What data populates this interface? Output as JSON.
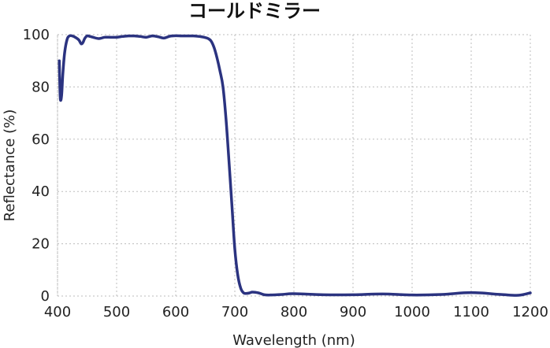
{
  "chart_data": {
    "type": "line",
    "title": "コールドミラー",
    "xlabel": "Wavelength (nm)",
    "ylabel": "Reflectance (%)",
    "xlim": [
      400,
      1200
    ],
    "ylim": [
      0,
      100
    ],
    "x_ticks": [
      "400",
      "500",
      "600",
      "700",
      "800",
      "900",
      "1000",
      "1100",
      "1200"
    ],
    "y_ticks": [
      "0",
      "20",
      "40",
      "60",
      "80",
      "100"
    ],
    "grid": true,
    "line_color": "#2b3380",
    "series": [
      {
        "x": [
          403,
          404,
          405,
          407,
          409,
          412,
          416,
          420,
          425,
          430,
          436,
          440,
          443,
          446,
          450,
          455,
          460,
          470,
          480,
          490,
          500,
          510,
          520,
          530,
          540,
          550,
          560,
          570,
          580,
          590,
          600,
          610,
          620,
          630,
          640,
          648,
          655,
          660,
          665,
          670,
          675,
          680,
          685,
          690,
          695,
          700,
          705,
          710,
          715,
          720,
          725,
          730,
          740,
          750,
          760,
          780,
          800,
          850,
          900,
          950,
          1000,
          1050,
          1100,
          1150,
          1180,
          1200
        ],
        "y": [
          90,
          80,
          75,
          77,
          85,
          93,
          98,
          99.5,
          99.5,
          99,
          98,
          96.5,
          97,
          98.5,
          99.5,
          99.3,
          99,
          98.5,
          99,
          99,
          99,
          99.3,
          99.5,
          99.5,
          99.3,
          99,
          99.5,
          99.2,
          98.7,
          99.4,
          99.6,
          99.5,
          99.5,
          99.5,
          99.3,
          99,
          98.5,
          97.5,
          95,
          91,
          86,
          80,
          68,
          52,
          35,
          18,
          8,
          3,
          1.2,
          1,
          1.2,
          1.5,
          1.2,
          0.5,
          0.4,
          0.6,
          0.9,
          0.5,
          0.5,
          0.8,
          0.4,
          0.6,
          1.3,
          0.6,
          0.3,
          1.2
        ]
      }
    ]
  }
}
